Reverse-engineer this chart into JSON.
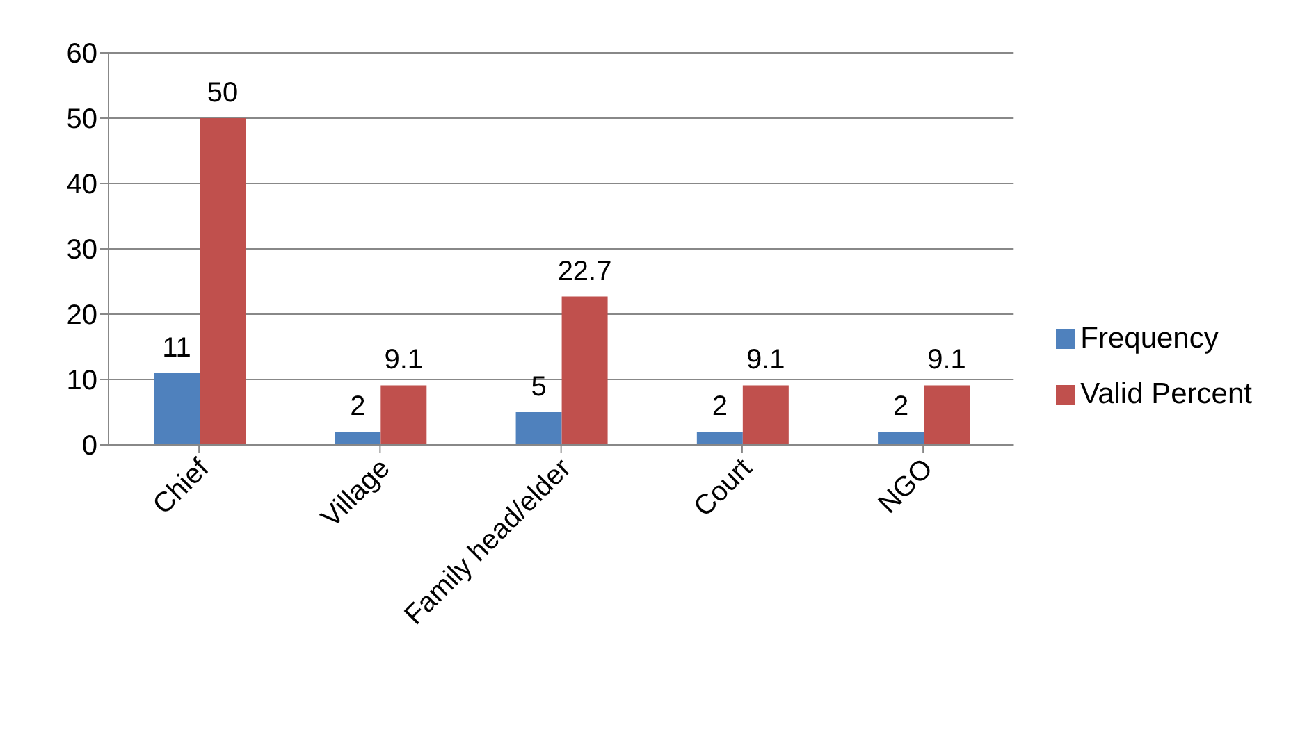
{
  "chart_data": {
    "type": "bar",
    "categories": [
      "Chief",
      "Village",
      "Family head/elder",
      "Court",
      "NGO"
    ],
    "series": [
      {
        "name": "Frequency",
        "color": "#4f81bd",
        "values": [
          11,
          2,
          5,
          2,
          2
        ]
      },
      {
        "name": "Valid Percent",
        "color": "#c0504d",
        "values": [
          50,
          9.1,
          22.7,
          9.1,
          9.1
        ]
      }
    ],
    "ylim": [
      0,
      60
    ],
    "yticks": [
      0,
      10,
      20,
      30,
      40,
      50,
      60
    ],
    "grid": "y",
    "legend": "right",
    "data_labels": true
  }
}
